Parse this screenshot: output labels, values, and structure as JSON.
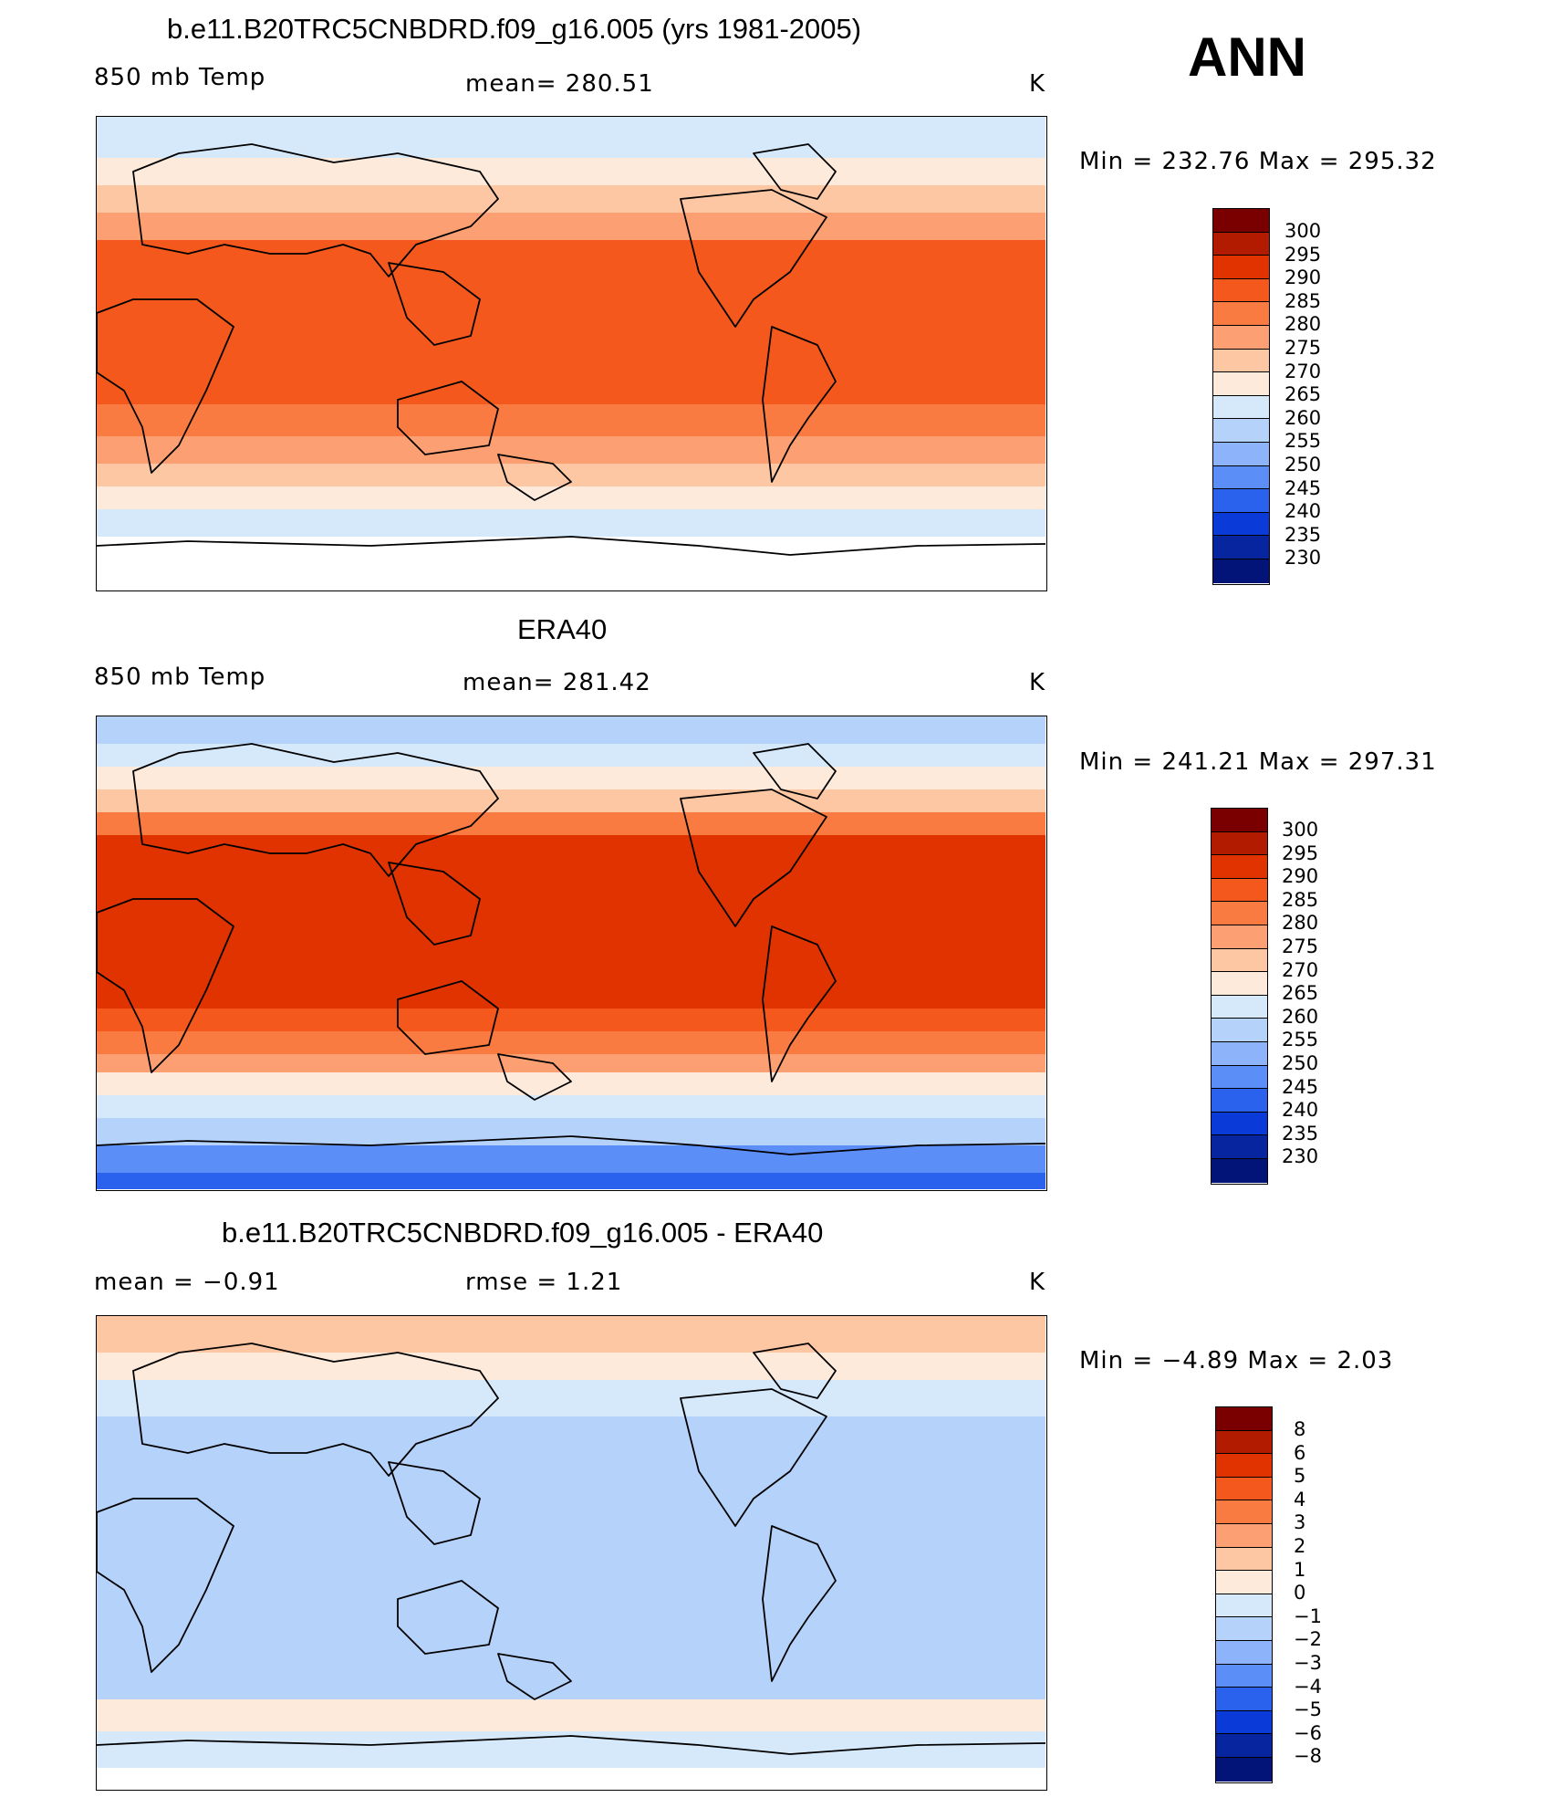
{
  "season": "ANN",
  "panels": [
    {
      "title": "b.e11.B20TRC5CNBDRD.f09_g16.005 (yrs 1981-2005)",
      "left_label": "850 mb Temp",
      "center_label": "mean=  280.51",
      "units": "K",
      "minmax": "Min  =  232.76  Max  =  295.32",
      "colorbar_ticks": [
        "300",
        "295",
        "290",
        "285",
        "280",
        "275",
        "270",
        "265",
        "260",
        "255",
        "250",
        "245",
        "240",
        "235",
        "230"
      ],
      "palette": "abs"
    },
    {
      "title": "ERA40",
      "left_label": "850 mb Temp",
      "center_label": "mean=  281.42",
      "units": "K",
      "minmax": "Min  =  241.21  Max  =  297.31",
      "colorbar_ticks": [
        "300",
        "295",
        "290",
        "285",
        "280",
        "275",
        "270",
        "265",
        "260",
        "255",
        "250",
        "245",
        "240",
        "235",
        "230"
      ],
      "palette": "abs"
    },
    {
      "title": "b.e11.B20TRC5CNBDRD.f09_g16.005 - ERA40",
      "left_label": "mean  =     −0.91",
      "center_label": "rmse  =      1.21",
      "units": "K",
      "minmax": "Min  =     −4.89  Max  =      2.03",
      "colorbar_ticks": [
        "8",
        "6",
        "5",
        "4",
        "3",
        "2",
        "1",
        "0",
        "−1",
        "−2",
        "−3",
        "−4",
        "−5",
        "−6",
        "−8"
      ],
      "palette": "diff"
    }
  ],
  "colors": {
    "scale": [
      "#7a0000",
      "#b31b00",
      "#e03300",
      "#f4581c",
      "#fa7b42",
      "#fc9f72",
      "#fdc7a3",
      "#feeadb",
      "#d6e9fb",
      "#b5d2fb",
      "#8db4fa",
      "#5b8ef7",
      "#2a62ee",
      "#0a3bd8",
      "#07259e",
      "#031478"
    ]
  }
}
